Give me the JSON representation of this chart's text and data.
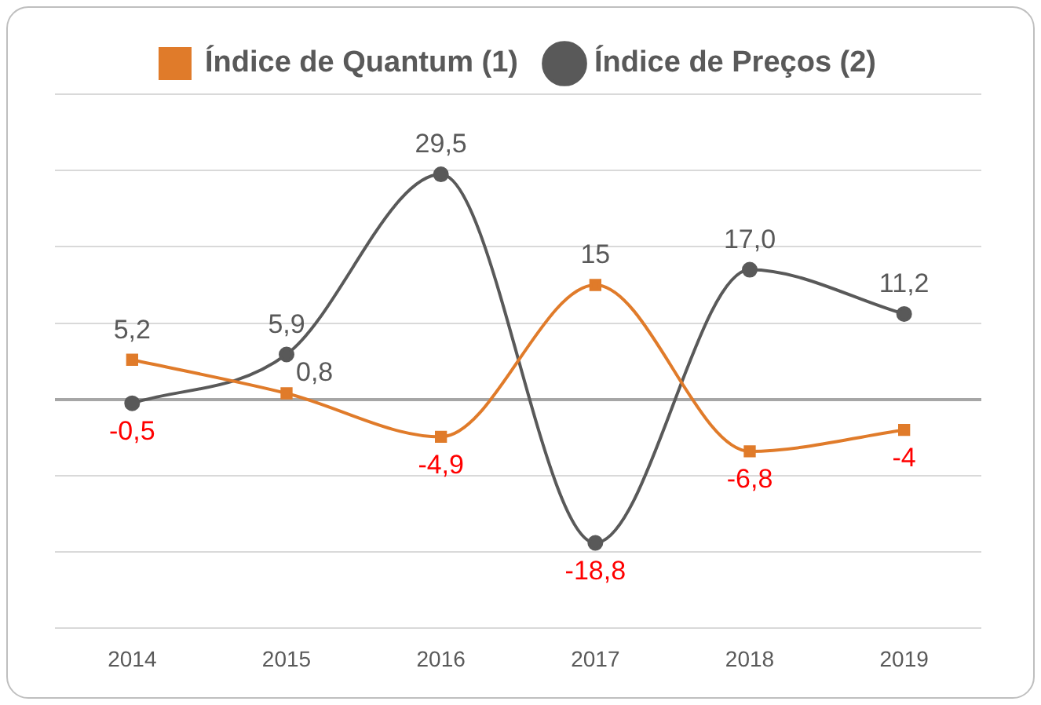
{
  "chart_data": {
    "type": "line",
    "categories": [
      "2014",
      "2015",
      "2016",
      "2017",
      "2018",
      "2019"
    ],
    "series": [
      {
        "name": "Índice de Quantum (1)",
        "color": "#e07b2a",
        "marker": "square",
        "values": [
          5.2,
          0.8,
          -4.9,
          15,
          -6.8,
          -4
        ],
        "value_labels": [
          "5,2",
          "0,8",
          "-4,9",
          "15",
          "-6,8",
          "-4"
        ]
      },
      {
        "name": "Índice de Preços (2)",
        "color": "#595959",
        "marker": "circle",
        "values": [
          -0.5,
          5.9,
          29.5,
          -18.8,
          17.0,
          11.2
        ],
        "value_labels": [
          "-0,5",
          "5,9",
          "29,5",
          "-18,8",
          "17,0",
          "11,2"
        ]
      }
    ],
    "ylim": [
      -30,
      40
    ],
    "yticks": [
      {
        "value": -30,
        "label": null
      },
      {
        "value": -20,
        "label": null
      },
      {
        "value": -10,
        "label": null
      },
      {
        "value": 0,
        "label": null
      },
      {
        "value": 10,
        "label": null
      },
      {
        "value": 20,
        "label": null
      },
      {
        "value": 30,
        "label": null
      },
      {
        "value": 40,
        "label": null
      }
    ],
    "tick_labels": "x",
    "grid": "y",
    "legend": "top"
  }
}
